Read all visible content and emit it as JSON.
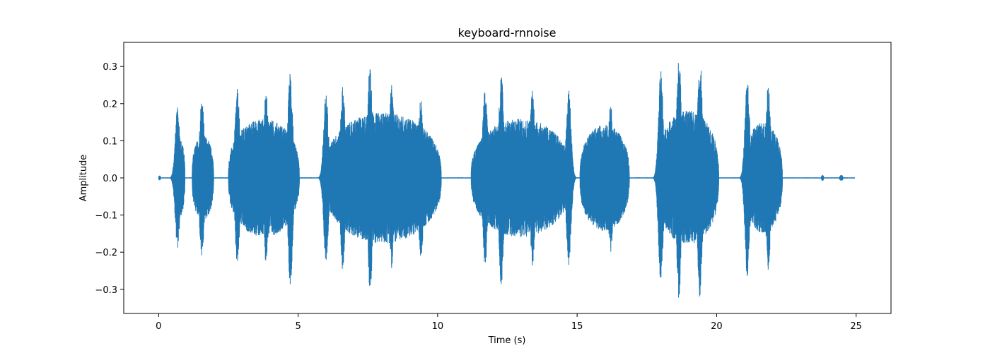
{
  "chart_data": {
    "type": "line",
    "title": "keyboard-rnnoise",
    "xlabel": "Time (s)",
    "ylabel": "Amplitude",
    "xlim": [
      -1.25,
      26.25
    ],
    "ylim": [
      -0.365,
      0.365
    ],
    "xticks": [
      0,
      5,
      10,
      15,
      20,
      25
    ],
    "yticks": [
      -0.3,
      -0.2,
      -0.1,
      0.0,
      0.1,
      0.2,
      0.3
    ],
    "xtick_labels": [
      "0",
      "5",
      "10",
      "15",
      "20",
      "25"
    ],
    "ytick_labels": [
      "−0.3",
      "−0.2",
      "−0.1",
      "0.0",
      "0.1",
      "0.2",
      "0.3"
    ],
    "line_color": "#1f77b4",
    "duration_s": 24.95,
    "grid": false,
    "series": [
      {
        "envelope_segments": [
          {
            "t": [
              0.0,
              0.08
            ],
            "peak": 0.012
          },
          {
            "t": [
              0.58,
              0.98
            ],
            "peak": 0.19
          },
          {
            "t": [
              1.2,
              2.05
            ],
            "peak": 0.21
          },
          {
            "t": [
              2.5,
              5.3
            ],
            "peak": 0.29
          },
          {
            "t": [
              5.95,
              10.55
            ],
            "peak": 0.32
          },
          {
            "t": [
              11.2,
              15.1
            ],
            "peak": 0.29
          },
          {
            "t": [
              15.1,
              17.05
            ],
            "peak": 0.26
          },
          {
            "t": [
              17.85,
              20.3
            ],
            "peak": 0.33
          },
          {
            "t": [
              20.95,
              22.5
            ],
            "peak": 0.27
          },
          {
            "t": [
              23.75,
              23.85
            ],
            "peak": 0.015
          },
          {
            "t": [
              24.4,
              24.55
            ],
            "peak": 0.014
          }
        ],
        "peaks": [
          {
            "t": 0.68,
            "max": 0.19,
            "min": -0.19
          },
          {
            "t": 1.55,
            "max": 0.22,
            "min": -0.21
          },
          {
            "t": 2.82,
            "max": 0.24,
            "min": -0.23
          },
          {
            "t": 3.85,
            "max": 0.23,
            "min": -0.23
          },
          {
            "t": 4.72,
            "max": 0.29,
            "min": -0.29
          },
          {
            "t": 6.0,
            "max": 0.23,
            "min": -0.23
          },
          {
            "t": 6.6,
            "max": 0.25,
            "min": -0.25
          },
          {
            "t": 7.58,
            "max": 0.32,
            "min": -0.32
          },
          {
            "t": 8.35,
            "max": 0.25,
            "min": -0.25
          },
          {
            "t": 9.4,
            "max": 0.22,
            "min": -0.22
          },
          {
            "t": 11.7,
            "max": 0.24,
            "min": -0.24
          },
          {
            "t": 12.28,
            "max": 0.29,
            "min": -0.29
          },
          {
            "t": 13.4,
            "max": 0.24,
            "min": -0.24
          },
          {
            "t": 14.7,
            "max": 0.24,
            "min": -0.24
          },
          {
            "t": 16.2,
            "max": 0.2,
            "min": -0.2
          },
          {
            "t": 18.0,
            "max": 0.29,
            "min": -0.29
          },
          {
            "t": 18.65,
            "max": 0.33,
            "min": -0.33
          },
          {
            "t": 19.4,
            "max": 0.33,
            "min": -0.33
          },
          {
            "t": 21.1,
            "max": 0.27,
            "min": -0.27
          },
          {
            "t": 21.85,
            "max": 0.25,
            "min": -0.25
          }
        ]
      }
    ]
  }
}
